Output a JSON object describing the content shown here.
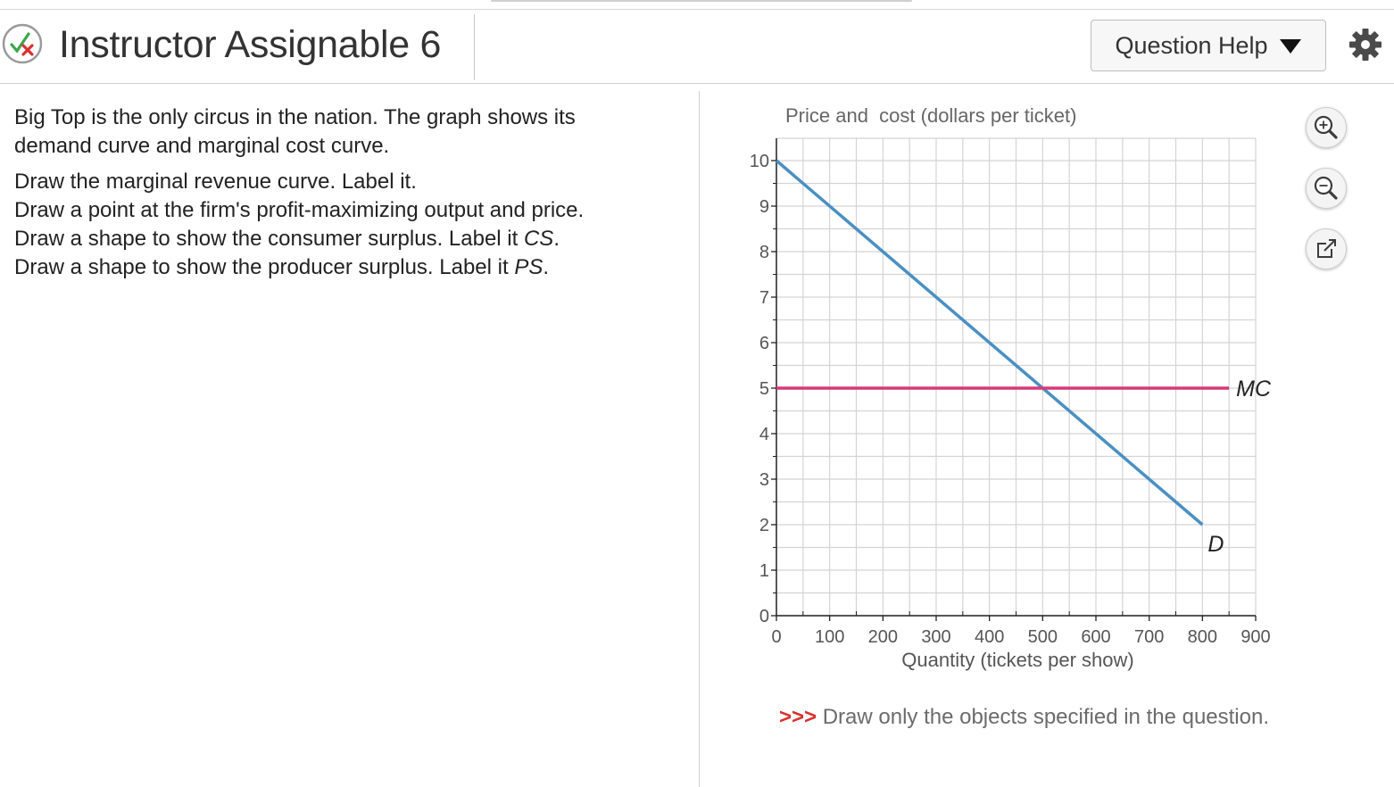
{
  "header": {
    "title": "Instructor Assignable 6",
    "help_label": "Question Help"
  },
  "question": {
    "intro": "Big Top is the only circus in the nation. The graph shows its demand curve and marginal cost curve.",
    "instructions": [
      {
        "text": "Draw the marginal revenue curve. Label it.",
        "label": ""
      },
      {
        "text": "Draw a point at the firm's profit-maximizing output and price.",
        "label": ""
      },
      {
        "text": "Draw a shape to show the consumer surplus. Label it ",
        "label": "CS",
        "end": "."
      },
      {
        "text": "Draw a shape to show the producer surplus. Label it ",
        "label": "PS",
        "end": "."
      }
    ]
  },
  "note": {
    "arrows": ">>>",
    "text": " Draw only the objects specified in the question."
  },
  "colors": {
    "demand": "#4a90c2",
    "mc": "#d63a7a",
    "grid": "#d4d4d4",
    "note_arrows": "#d9302c"
  },
  "chart_data": {
    "type": "line",
    "ylabel": "Price and  cost (dollars per ticket)",
    "xlabel": "Quantity (tickets per show)",
    "xlim": [
      0,
      900
    ],
    "ylim": [
      0,
      10
    ],
    "x_ticks": [
      "0",
      "100",
      "200",
      "300",
      "400",
      "500",
      "600",
      "700",
      "800",
      "900"
    ],
    "y_ticks": [
      "0",
      "1",
      "2",
      "3",
      "4",
      "5",
      "6",
      "7",
      "8",
      "9",
      "10"
    ],
    "grid": true,
    "series": [
      {
        "name": "D",
        "x": [
          0,
          800
        ],
        "y": [
          10,
          2
        ]
      },
      {
        "name": "MC",
        "x": [
          0,
          850
        ],
        "y": [
          5,
          5
        ]
      }
    ]
  }
}
